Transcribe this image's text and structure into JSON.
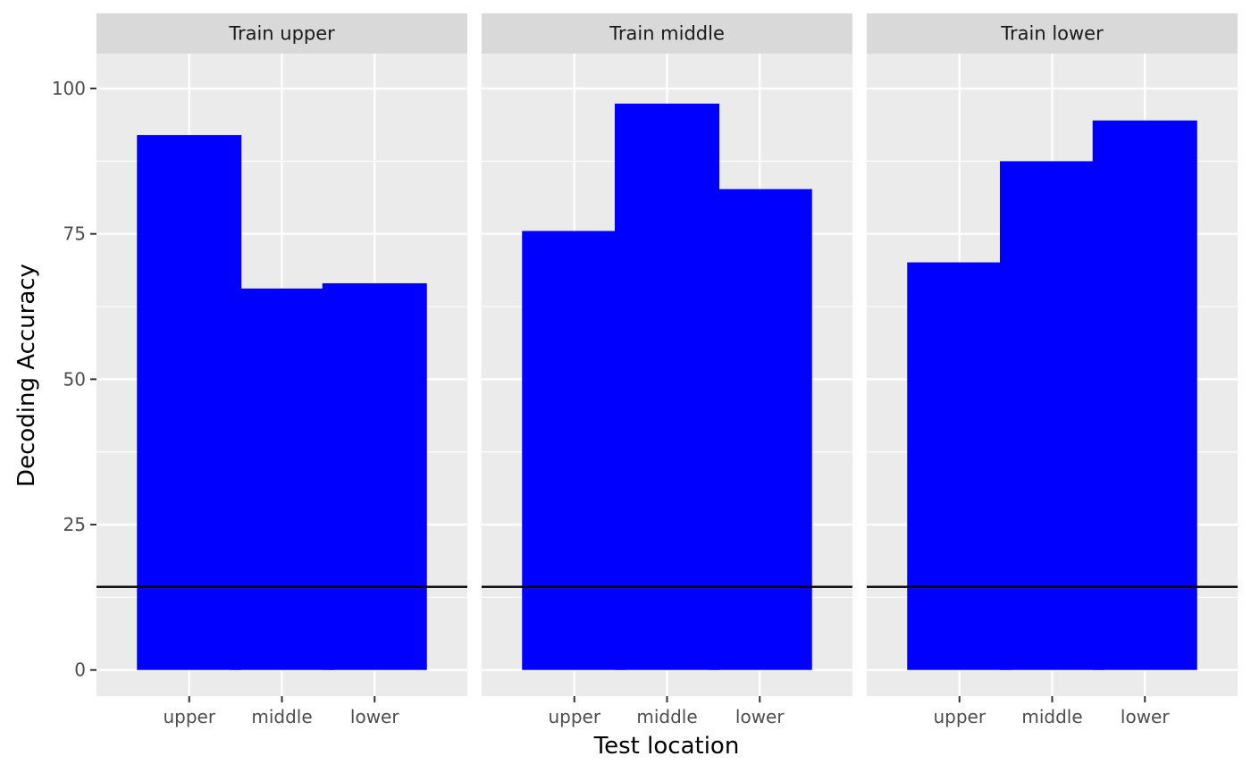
{
  "chart_data": {
    "type": "bar",
    "facets": [
      {
        "name": "Train upper",
        "categories": [
          "upper",
          "middle",
          "lower"
        ],
        "values": [
          92,
          65.6,
          66.5
        ]
      },
      {
        "name": "Train middle",
        "categories": [
          "upper",
          "middle",
          "lower"
        ],
        "values": [
          75.5,
          97.4,
          82.7
        ]
      },
      {
        "name": "Train lower",
        "categories": [
          "upper",
          "middle",
          "lower"
        ],
        "values": [
          70.1,
          87.5,
          94.5
        ]
      }
    ],
    "xlabel": "Test location",
    "ylabel": "Decoding Accuracy",
    "ylim": [
      -4.5,
      106
    ],
    "yticks": [
      0,
      25,
      50,
      75,
      100
    ],
    "reference_line": 14.3,
    "grid": true,
    "colors": {
      "bar": "#0000ff",
      "panel_background": "#ebebeb",
      "strip_background": "#d9d9d9",
      "grid": "#ffffff",
      "reference_line": "#000000"
    }
  }
}
